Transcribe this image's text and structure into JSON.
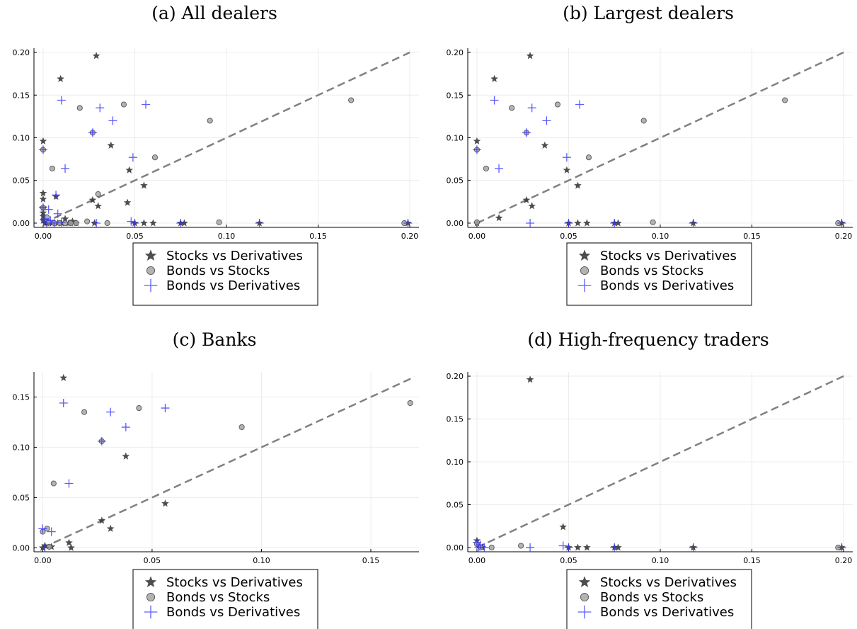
{
  "colors": {
    "stocks_vs_derivatives": "#3a3a3a",
    "bonds_vs_stocks": "#a6a6a6",
    "bonds_vs_derivatives": "#3333ff",
    "diagonal": "#808080"
  },
  "chart_data": [
    {
      "type": "scatter",
      "title": "(a) All dealers",
      "xlim": [
        -0.005,
        0.205
      ],
      "ylim": [
        -0.005,
        0.205
      ],
      "xticks": [
        0.0,
        0.05,
        0.1,
        0.15,
        0.2
      ],
      "yticks": [
        0.0,
        0.05,
        0.1,
        0.15,
        0.2
      ],
      "xtick_labels": [
        "0.00",
        "0.05",
        "0.10",
        "0.15",
        "0.20"
      ],
      "ytick_labels": [
        "0.00",
        "0.05",
        "0.10",
        "0.15",
        "0.20"
      ],
      "diagonal": [
        [
          0,
          0
        ],
        [
          0.2,
          0.2
        ]
      ],
      "grid": true,
      "legend_position": "bottom-outside",
      "series": [
        {
          "name": "Stocks vs Derivatives",
          "marker": "star",
          "x": [
            0.029,
            0.0095,
            0.0,
            0.037,
            0.047,
            0.055,
            0.0,
            0.007,
            0.027,
            0.03,
            0.046,
            0.0,
            0.0,
            0.0,
            0.0,
            0.0,
            0.001,
            0.002,
            0.003,
            0.005,
            0.008,
            0.01,
            0.012,
            0.014,
            0.015,
            0.016,
            0.018,
            0.028,
            0.05,
            0.055,
            0.06,
            0.075,
            0.077,
            0.118,
            0.199
          ],
          "y": [
            0.196,
            0.169,
            0.096,
            0.091,
            0.062,
            0.044,
            0.035,
            0.031,
            0.027,
            0.02,
            0.024,
            0.028,
            0.018,
            0.012,
            0.008,
            0.003,
            0.0,
            0.0,
            0.0,
            0.0,
            0.0,
            0.0,
            0.005,
            0.0,
            0.0,
            0.002,
            0.0,
            0.0,
            0.0,
            0.0,
            0.0,
            0.0,
            0.0,
            0.0,
            0.0
          ]
        },
        {
          "name": "Bonds vs Stocks",
          "marker": "circle",
          "x": [
            0.168,
            0.044,
            0.02,
            0.091,
            0.027,
            0.0,
            0.061,
            0.005,
            0.03,
            0.0,
            0.002,
            0.003,
            0.006,
            0.009,
            0.012,
            0.015,
            0.018,
            0.024,
            0.035,
            0.096,
            0.197
          ],
          "y": [
            0.144,
            0.139,
            0.135,
            0.12,
            0.106,
            0.086,
            0.077,
            0.064,
            0.034,
            0.018,
            0.007,
            0.001,
            0.0,
            0.0,
            0.0,
            0.0,
            0.0,
            0.002,
            0.0,
            0.001,
            0.0
          ]
        },
        {
          "name": "Bonds vs Derivatives",
          "marker": "plus",
          "x": [
            0.01,
            0.031,
            0.056,
            0.038,
            0.027,
            0.0,
            0.049,
            0.012,
            0.007,
            0.0,
            0.001,
            0.002,
            0.003,
            0.004,
            0.006,
            0.008,
            0.01,
            0.048,
            0.029,
            0.05,
            0.075,
            0.118,
            0.199
          ],
          "y": [
            0.144,
            0.135,
            0.139,
            0.12,
            0.106,
            0.086,
            0.077,
            0.064,
            0.033,
            0.018,
            0.005,
            0.0,
            0.016,
            0.003,
            0.0,
            0.011,
            0.001,
            0.002,
            0.0,
            0.0,
            0.0,
            0.0,
            0.0
          ]
        }
      ]
    },
    {
      "type": "scatter",
      "title": "(b) Largest dealers",
      "xlim": [
        -0.005,
        0.205
      ],
      "ylim": [
        -0.005,
        0.205
      ],
      "xticks": [
        0.0,
        0.05,
        0.1,
        0.15,
        0.2
      ],
      "yticks": [
        0.0,
        0.05,
        0.1,
        0.15,
        0.2
      ],
      "xtick_labels": [
        "0.00",
        "0.05",
        "0.10",
        "0.15",
        "0.20"
      ],
      "ytick_labels": [
        "0.00",
        "0.05",
        "0.10",
        "0.15",
        "0.20"
      ],
      "diagonal": [
        [
          0,
          0
        ],
        [
          0.2,
          0.2
        ]
      ],
      "grid": true,
      "legend_position": "bottom-outside",
      "series": [
        {
          "name": "Stocks vs Derivatives",
          "marker": "star",
          "x": [
            0.029,
            0.0095,
            0.0,
            0.037,
            0.049,
            0.055,
            0.027,
            0.03,
            0.012,
            0.0,
            0.05,
            0.055,
            0.06,
            0.075,
            0.077,
            0.118,
            0.199
          ],
          "y": [
            0.196,
            0.169,
            0.096,
            0.091,
            0.062,
            0.044,
            0.027,
            0.02,
            0.006,
            0.0,
            0.0,
            0.0,
            0.0,
            0.0,
            0.0,
            0.0,
            0.0
          ]
        },
        {
          "name": "Bonds vs Stocks",
          "marker": "circle",
          "x": [
            0.168,
            0.044,
            0.019,
            0.091,
            0.027,
            0.0,
            0.061,
            0.005,
            0.0,
            0.096,
            0.197
          ],
          "y": [
            0.144,
            0.139,
            0.135,
            0.12,
            0.106,
            0.086,
            0.077,
            0.064,
            0.001,
            0.001,
            0.0
          ]
        },
        {
          "name": "Bonds vs Derivatives",
          "marker": "plus",
          "x": [
            0.0095,
            0.03,
            0.056,
            0.038,
            0.027,
            0.0,
            0.049,
            0.012,
            0.029,
            0.05,
            0.075,
            0.118,
            0.199
          ],
          "y": [
            0.144,
            0.135,
            0.139,
            0.12,
            0.106,
            0.086,
            0.077,
            0.064,
            0.0,
            0.0,
            0.0,
            0.0,
            0.0
          ]
        }
      ]
    },
    {
      "type": "scatter",
      "title": "(c) Banks",
      "xlim": [
        -0.004,
        0.172
      ],
      "ylim": [
        -0.004,
        0.175
      ],
      "xticks": [
        0.0,
        0.05,
        0.1,
        0.15
      ],
      "yticks": [
        0.0,
        0.05,
        0.1,
        0.15
      ],
      "xtick_labels": [
        "0.00",
        "0.05",
        "0.10",
        "0.15"
      ],
      "ytick_labels": [
        "0.00",
        "0.05",
        "0.10",
        "0.15"
      ],
      "diagonal": [
        [
          0,
          0
        ],
        [
          0.17,
          0.17
        ]
      ],
      "grid": true,
      "legend_position": "bottom-outside",
      "series": [
        {
          "name": "Stocks vs Derivatives",
          "marker": "star",
          "x": [
            0.0095,
            0.038,
            0.056,
            0.027,
            0.031,
            0.012,
            0.013,
            0.0,
            0.001,
            0.004
          ],
          "y": [
            0.169,
            0.091,
            0.044,
            0.027,
            0.019,
            0.005,
            0.0,
            0.0,
            0.002,
            0.001
          ]
        },
        {
          "name": "Bonds vs Stocks",
          "marker": "circle",
          "x": [
            0.168,
            0.044,
            0.019,
            0.091,
            0.027,
            0.005,
            0.0,
            0.002,
            0.003
          ],
          "y": [
            0.144,
            0.139,
            0.135,
            0.12,
            0.106,
            0.064,
            0.016,
            0.019,
            0.001
          ]
        },
        {
          "name": "Bonds vs Derivatives",
          "marker": "plus",
          "x": [
            0.0095,
            0.031,
            0.056,
            0.038,
            0.027,
            0.012,
            0.0,
            0.004,
            0.001
          ],
          "y": [
            0.144,
            0.135,
            0.139,
            0.12,
            0.106,
            0.064,
            0.019,
            0.016,
            0.0
          ]
        }
      ]
    },
    {
      "type": "scatter",
      "title": "(d) High-frequency traders",
      "xlim": [
        -0.005,
        0.205
      ],
      "ylim": [
        -0.005,
        0.205
      ],
      "xticks": [
        0.0,
        0.05,
        0.1,
        0.15,
        0.2
      ],
      "yticks": [
        0.0,
        0.05,
        0.1,
        0.15,
        0.2
      ],
      "xtick_labels": [
        "0.00",
        "0.05",
        "0.10",
        "0.15",
        "0.20"
      ],
      "ytick_labels": [
        "0.00",
        "0.05",
        "0.10",
        "0.15",
        "0.20"
      ],
      "diagonal": [
        [
          0,
          0
        ],
        [
          0.2,
          0.2
        ]
      ],
      "grid": true,
      "legend_position": "bottom-outside",
      "series": [
        {
          "name": "Stocks vs Derivatives",
          "marker": "star",
          "x": [
            0.029,
            0.047,
            0.0,
            0.001,
            0.003,
            0.05,
            0.055,
            0.06,
            0.075,
            0.077,
            0.118,
            0.199
          ],
          "y": [
            0.196,
            0.024,
            0.008,
            0.002,
            0.0,
            0.0,
            0.0,
            0.0,
            0.0,
            0.0,
            0.0,
            0.0
          ]
        },
        {
          "name": "Bonds vs Stocks",
          "marker": "circle",
          "x": [
            0.0,
            0.002,
            0.008,
            0.024,
            0.197
          ],
          "y": [
            0.004,
            0.0,
            0.0,
            0.002,
            0.0
          ]
        },
        {
          "name": "Bonds vs Derivatives",
          "marker": "plus",
          "x": [
            0.0,
            0.001,
            0.002,
            0.004,
            0.029,
            0.047,
            0.05,
            0.075,
            0.118,
            0.199
          ],
          "y": [
            0.006,
            0.0,
            0.003,
            0.0,
            0.0,
            0.002,
            0.0,
            0.0,
            0.0,
            0.0
          ]
        }
      ]
    }
  ]
}
